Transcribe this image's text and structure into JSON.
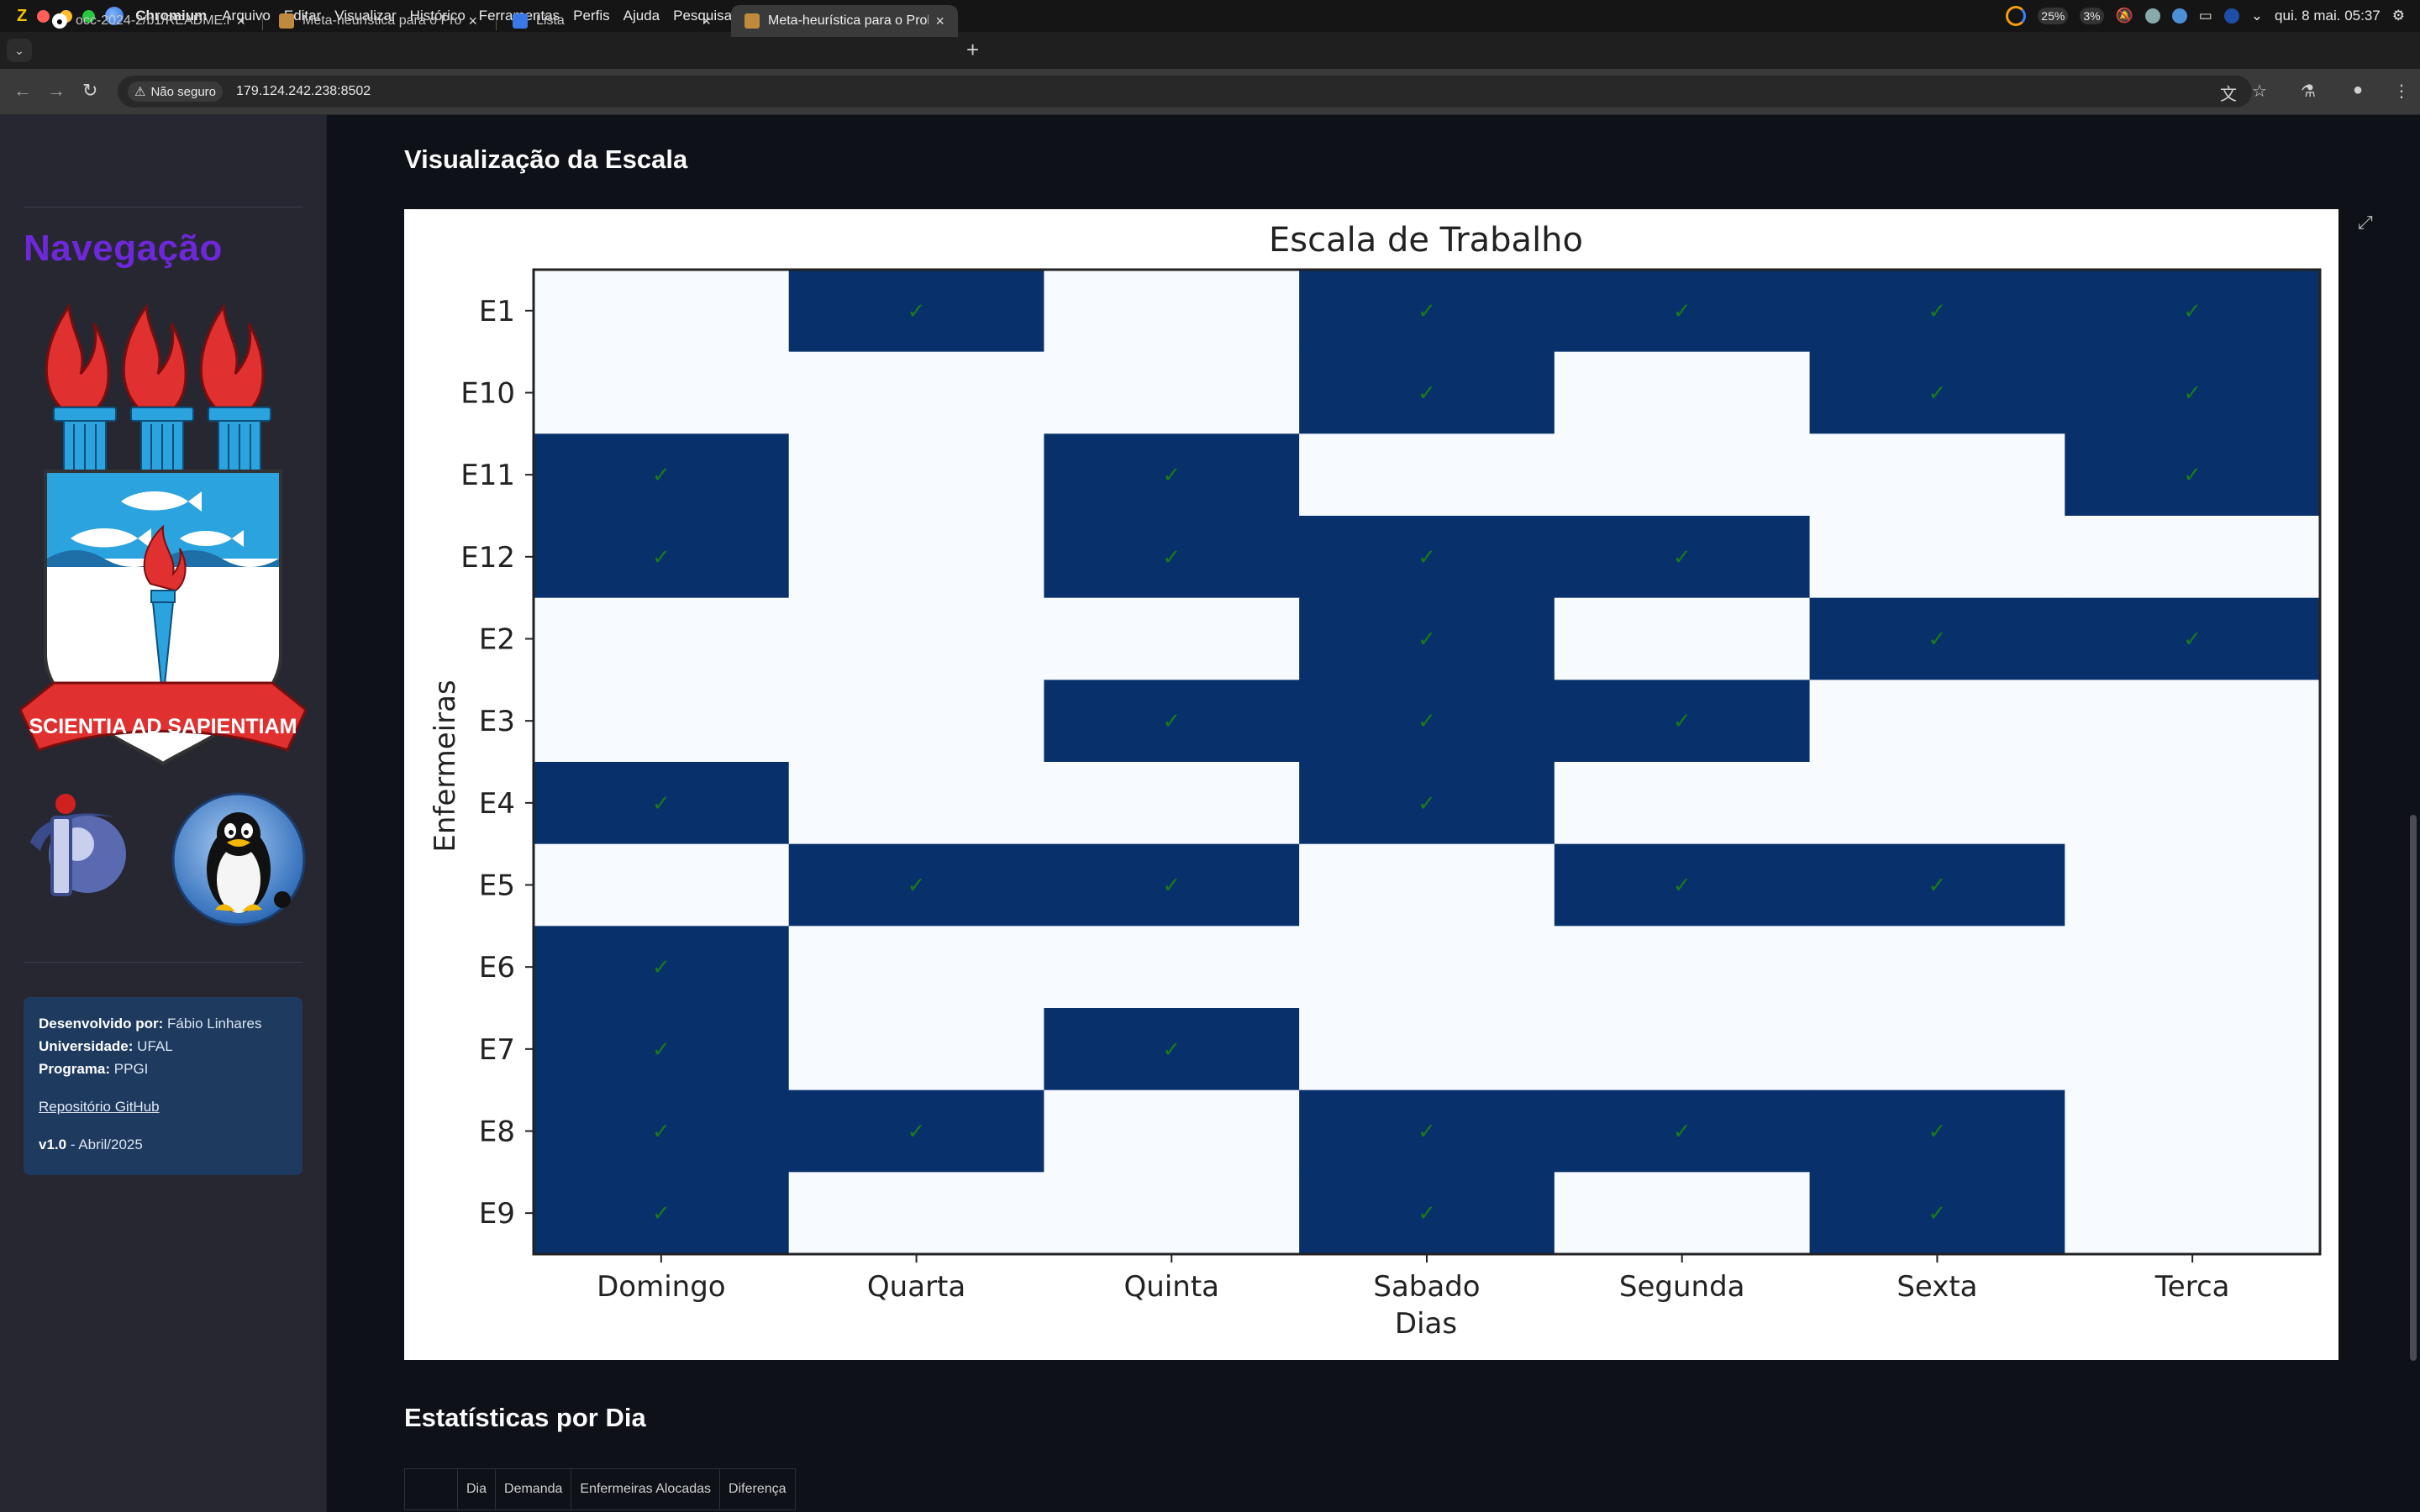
{
  "menubar": {
    "app_name": "Chromium",
    "items": [
      "Arquivo",
      "Editar",
      "Visualizar",
      "Histórico",
      "Ferramentas",
      "Perfis",
      "Ajuda",
      "Pesquisar"
    ],
    "stat1": "25%",
    "stat2": "3%",
    "clock": "qui. 8 mai. 05:37"
  },
  "browser": {
    "tabs": [
      {
        "title": "occ-2024-2/b1/README.md",
        "icon": "github-icon"
      },
      {
        "title": "Meta-heurística para o Problema",
        "icon": "package-icon"
      },
      {
        "title": "Lista",
        "icon": "slides-icon"
      },
      {
        "title": "Meta-heurística para o Problema",
        "icon": "package-icon",
        "active": true
      }
    ],
    "security_label": "Não seguro",
    "url": "179.124.242.238:8502"
  },
  "sidebar": {
    "title": "Navegação",
    "logo_motto": "SCIENTIA AD SAPIENTIAM",
    "info": {
      "dev_label": "Desenvolvido por:",
      "dev_value": "Fábio Linhares",
      "uni_label": "Universidade:",
      "uni_value": "UFAL",
      "prog_label": "Programa:",
      "prog_value": "PPGI",
      "repo_link": "Repositório GitHub",
      "version": "v1.0",
      "version_date": "- Abril/2025"
    }
  },
  "main": {
    "title": "Visualização da Escala",
    "stats_title": "Estatísticas por Dia",
    "stats_columns": [
      "",
      "Dia",
      "Demanda",
      "Enfermeiras Alocadas",
      "Diferença"
    ]
  },
  "chart_data": {
    "type": "heatmap",
    "title": "Escala de Trabalho",
    "xlabel": "Dias",
    "ylabel": "Enfermeiras",
    "columns": [
      "Domingo",
      "Quarta",
      "Quinta",
      "Sabado",
      "Segunda",
      "Sexta",
      "Terca"
    ],
    "rows": [
      "E1",
      "E10",
      "E11",
      "E12",
      "E2",
      "E3",
      "E4",
      "E5",
      "E6",
      "E7",
      "E8",
      "E9"
    ],
    "values": [
      [
        0,
        1,
        0,
        1,
        1,
        1,
        1
      ],
      [
        0,
        0,
        0,
        1,
        0,
        1,
        1
      ],
      [
        1,
        0,
        1,
        0,
        0,
        0,
        1
      ],
      [
        1,
        0,
        1,
        1,
        1,
        0,
        0
      ],
      [
        0,
        0,
        0,
        1,
        0,
        1,
        1
      ],
      [
        0,
        0,
        1,
        1,
        1,
        0,
        0
      ],
      [
        1,
        0,
        0,
        1,
        0,
        0,
        0
      ],
      [
        0,
        1,
        1,
        0,
        1,
        1,
        0
      ],
      [
        1,
        0,
        0,
        0,
        0,
        0,
        0
      ],
      [
        1,
        0,
        1,
        0,
        0,
        0,
        0
      ],
      [
        1,
        1,
        0,
        1,
        1,
        1,
        0
      ],
      [
        1,
        0,
        0,
        1,
        0,
        1,
        0
      ]
    ],
    "mark": "✓",
    "colors": {
      "on": "#08306b",
      "off": "#f7fbff",
      "mark": "#1a7a1a"
    }
  }
}
